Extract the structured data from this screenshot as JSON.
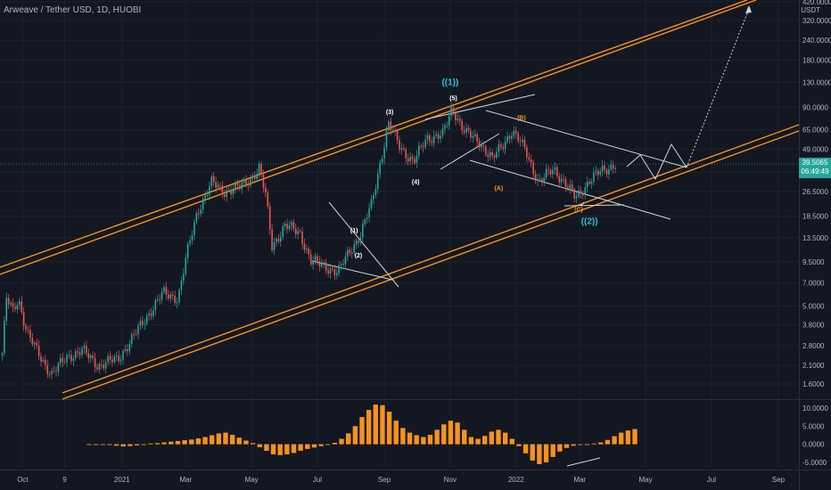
{
  "header": {
    "symbol_title": "Arweave / Tether USD, 1D, HUOBI",
    "unit_label": "USDT",
    "last_price": "39.5065",
    "countdown": "06:49:49"
  },
  "colors": {
    "background": "#131722",
    "grid": "#1e222d",
    "channel": "#f7931a",
    "candle_up": "#26a69a",
    "candle_down": "#ef5350",
    "wave_label_primary": "#26c6da",
    "wave_label_secondary": "#f7931a",
    "indicator_bar": "#f7931a",
    "trend_line": "#d1d4dc"
  },
  "chart_data": [
    {
      "type": "candlestick",
      "title": "Arweave / Tether USD, 1D, HUOBI",
      "y_scale": "log",
      "ylim": [
        1.3,
        420
      ],
      "y_ticks": [
        "420.0000",
        "320.0000",
        "240.0000",
        "180.0000",
        "130.0000",
        "90.0000",
        "65.0000",
        "49.0000",
        "35.0000",
        "26.5000",
        "18.5000",
        "13.5000",
        "9.5000",
        "7.0000",
        "5.0000",
        "3.8000",
        "2.8000",
        "2.1000",
        "1.6000"
      ],
      "y_tick_values": [
        420,
        320,
        240,
        180,
        130,
        90,
        65,
        49,
        35,
        26.5,
        18.5,
        13.5,
        9.5,
        7.0,
        5.0,
        3.8,
        2.8,
        2.1,
        1.6
      ],
      "x_ticks": [
        "Oct",
        "9",
        "2021",
        "Mar",
        "May",
        "Jul",
        "Sep",
        "Nov",
        "2022",
        "Mar",
        "May",
        "Jul",
        "Sep"
      ],
      "x_tick_dates": [
        "2020-10-01",
        "2020-11-09",
        "2021-01-01",
        "2021-03-01",
        "2021-05-01",
        "2021-07-01",
        "2021-09-01",
        "2021-11-01",
        "2022-01-01",
        "2022-03-01",
        "2022-05-01",
        "2022-07-01",
        "2022-09-01"
      ],
      "x_range": [
        "2020-09-10",
        "2022-09-20"
      ],
      "close_path": [
        {
          "date": "2020-09-12",
          "close": 2.5
        },
        {
          "date": "2020-09-16",
          "close": 5.5
        },
        {
          "date": "2020-09-22",
          "close": 4.6
        },
        {
          "date": "2020-09-27",
          "close": 5.6
        },
        {
          "date": "2020-10-05",
          "close": 3.4
        },
        {
          "date": "2020-10-15",
          "close": 2.5
        },
        {
          "date": "2020-10-28",
          "close": 1.85
        },
        {
          "date": "2020-11-12",
          "close": 2.4
        },
        {
          "date": "2020-11-25",
          "close": 2.6
        },
        {
          "date": "2020-12-10",
          "close": 2.1
        },
        {
          "date": "2020-12-28",
          "close": 2.3
        },
        {
          "date": "2021-01-12",
          "close": 3.2
        },
        {
          "date": "2021-01-25",
          "close": 4.4
        },
        {
          "date": "2021-02-08",
          "close": 6.0
        },
        {
          "date": "2021-02-22",
          "close": 5.6
        },
        {
          "date": "2021-03-02",
          "close": 10.5
        },
        {
          "date": "2021-03-12",
          "close": 20.0
        },
        {
          "date": "2021-03-25",
          "close": 30.0
        },
        {
          "date": "2021-04-05",
          "close": 26.5
        },
        {
          "date": "2021-04-20",
          "close": 28.0
        },
        {
          "date": "2021-04-30",
          "close": 32.0
        },
        {
          "date": "2021-05-08",
          "close": 37.0
        },
        {
          "date": "2021-05-14",
          "close": 25.0
        },
        {
          "date": "2021-05-20",
          "close": 12.0
        },
        {
          "date": "2021-06-01",
          "close": 16.0
        },
        {
          "date": "2021-06-15",
          "close": 14.5
        },
        {
          "date": "2021-06-25",
          "close": 9.5
        },
        {
          "date": "2021-07-08",
          "close": 9.0
        },
        {
          "date": "2021-07-20",
          "close": 8.0
        },
        {
          "date": "2021-07-30",
          "close": 11.0
        },
        {
          "date": "2021-08-10",
          "close": 14.0
        },
        {
          "date": "2021-08-20",
          "close": 22.0
        },
        {
          "date": "2021-08-28",
          "close": 40.0
        },
        {
          "date": "2021-09-05",
          "close": 70.0
        },
        {
          "date": "2021-09-15",
          "close": 52.0
        },
        {
          "date": "2021-09-28",
          "close": 40.0
        },
        {
          "date": "2021-10-10",
          "close": 58.0
        },
        {
          "date": "2021-10-25",
          "close": 60.0
        },
        {
          "date": "2021-11-03",
          "close": 90.0
        },
        {
          "date": "2021-11-15",
          "close": 62.0
        },
        {
          "date": "2021-11-28",
          "close": 55.0
        },
        {
          "date": "2021-12-10",
          "close": 42.0
        },
        {
          "date": "2021-12-28",
          "close": 64.0
        },
        {
          "date": "2022-01-10",
          "close": 48.0
        },
        {
          "date": "2022-01-22",
          "close": 30.0
        },
        {
          "date": "2022-02-05",
          "close": 37.0
        },
        {
          "date": "2022-02-15",
          "close": 30.0
        },
        {
          "date": "2022-02-25",
          "close": 24.0
        },
        {
          "date": "2022-03-10",
          "close": 31.0
        },
        {
          "date": "2022-03-22",
          "close": 36.0
        },
        {
          "date": "2022-04-03",
          "close": 39.5
        }
      ],
      "wave_labels": [
        {
          "text": "((1))",
          "date": "2021-11-01",
          "price": 125,
          "color": "primary"
        },
        {
          "text": "(5)",
          "date": "2021-11-04",
          "price": 100,
          "color": "white"
        },
        {
          "text": "(3)",
          "date": "2021-09-06",
          "price": 82,
          "color": "white"
        },
        {
          "text": "(4)",
          "date": "2021-09-30",
          "price": 29.5,
          "color": "white"
        },
        {
          "text": "(1)",
          "date": "2021-08-04",
          "price": 14.5,
          "color": "white"
        },
        {
          "text": "(2)",
          "date": "2021-08-08",
          "price": 10.1,
          "color": "white"
        },
        {
          "text": "(B)",
          "date": "2022-01-06",
          "price": 75,
          "color": "secondary"
        },
        {
          "text": "(A)",
          "date": "2021-12-16",
          "price": 27,
          "color": "secondary"
        },
        {
          "text": "(C)",
          "date": "2022-02-28",
          "price": 19.7,
          "color": "secondary"
        },
        {
          "text": "((2))",
          "date": "2022-03-10",
          "price": 16.5,
          "color": "primary"
        }
      ],
      "divergence_label": "✓"
    },
    {
      "type": "bar",
      "title": "",
      "y_ticks": [
        "10.0000",
        "5.0000",
        "0.0000",
        "-5.0000"
      ],
      "y_tick_values": [
        10,
        5,
        0,
        -5
      ],
      "ylim": [
        -6.5,
        12
      ],
      "series": [
        {
          "values": [
            0,
            0,
            0,
            -0.2,
            -0.4,
            -0.6,
            -0.5,
            -0.3,
            0,
            0.2,
            0.3,
            0.5,
            0.7,
            0.9,
            1.1,
            1.3,
            1.6,
            2.0,
            2.5,
            3.0,
            3.2,
            2.6,
            1.8,
            1.0,
            0.3,
            -0.8,
            -1.8,
            -2.8,
            -3.0,
            -2.8,
            -2.4,
            -1.8,
            -1.3,
            -0.9,
            -0.5,
            -0.2,
            0.4,
            1.5,
            3.0,
            5.0,
            7.5,
            9.5,
            11.0,
            10.8,
            9.0,
            6.5,
            4.5,
            3.2,
            2.5,
            2.0,
            2.6,
            4.0,
            5.5,
            6.5,
            6.0,
            4.0,
            2.0,
            1.5,
            2.3,
            3.5,
            4.0,
            3.2,
            1.5,
            -0.5,
            -2.5,
            -4.5,
            -5.5,
            -5.0,
            -3.5,
            -2.0,
            -1.0,
            -0.4,
            -0.2,
            0.0,
            0.2,
            0.5,
            1.2,
            2.2,
            3.2,
            3.8,
            4.2
          ]
        }
      ]
    }
  ]
}
